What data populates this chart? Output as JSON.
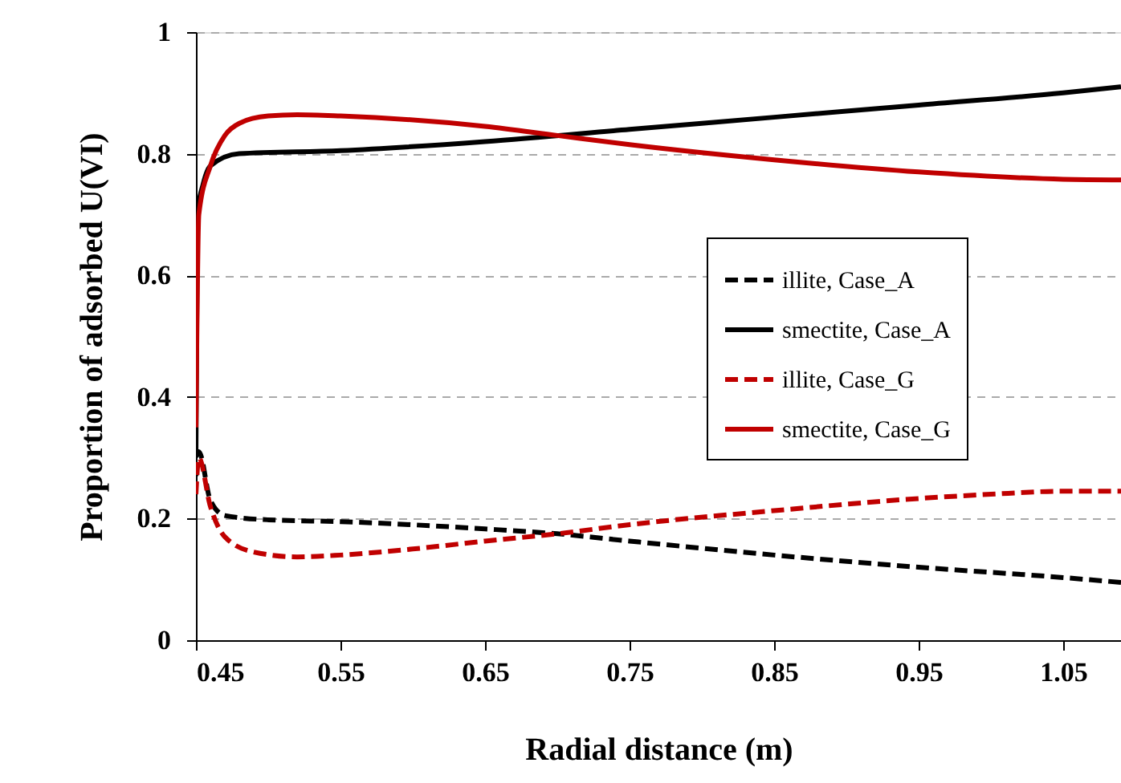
{
  "chart_data": {
    "type": "line",
    "xlabel": "Radial distance (m)",
    "ylabel": "Proportion of adsorbed U(VI)",
    "xlim": [
      0.45,
      1.09
    ],
    "xticks": [
      0.45,
      0.55,
      0.65,
      0.75,
      0.85,
      0.95,
      1.05
    ],
    "ylim": [
      0,
      1
    ],
    "yticks": [
      {
        "value": 0,
        "label": "0"
      },
      0.2,
      0.4,
      0.6,
      0.8,
      {
        "value": 1,
        "label": "1"
      }
    ],
    "grid": "y",
    "legend": "right",
    "marker": "none",
    "series": [
      {
        "name": "illite, Case_A",
        "color": "#000000",
        "line_style": "dashed",
        "x": [
          0.45,
          0.452,
          0.46,
          0.47,
          0.5,
          0.55,
          0.65,
          0.7,
          0.75,
          0.85,
          0.95,
          1.05,
          1.09
        ],
        "values": [
          0.27,
          0.31,
          0.23,
          0.205,
          0.198,
          0.195,
          0.183,
          0.175,
          0.163,
          0.14,
          0.12,
          0.103,
          0.095
        ]
      },
      {
        "name": "smectite, Case_A",
        "color": "#000000",
        "line_style": "solid",
        "x": [
          0.45,
          0.451,
          0.455,
          0.46,
          0.48,
          0.55,
          0.65,
          0.75,
          0.85,
          0.95,
          1.05,
          1.09
        ],
        "values": [
          0.3,
          0.7,
          0.75,
          0.78,
          0.8,
          0.805,
          0.82,
          0.84,
          0.86,
          0.88,
          0.9,
          0.91
        ]
      },
      {
        "name": "illite, Case_G",
        "color": "#c00000",
        "line_style": "dashed",
        "x": [
          0.45,
          0.452,
          0.46,
          0.47,
          0.49,
          0.52,
          0.55,
          0.6,
          0.65,
          0.7,
          0.75,
          0.85,
          0.95,
          1.0,
          1.05,
          1.09
        ],
        "values": [
          0.24,
          0.3,
          0.22,
          0.17,
          0.145,
          0.137,
          0.14,
          0.15,
          0.163,
          0.175,
          0.19,
          0.213,
          0.233,
          0.24,
          0.245,
          0.245
        ]
      },
      {
        "name": "smectite, Case_G",
        "color": "#c00000",
        "line_style": "solid",
        "x": [
          0.45,
          0.452,
          0.46,
          0.47,
          0.48,
          0.5,
          0.52,
          0.55,
          0.65,
          0.7,
          0.75,
          0.85,
          0.95,
          1.05,
          1.09
        ],
        "values": [
          0.35,
          0.7,
          0.78,
          0.83,
          0.85,
          0.862,
          0.864,
          0.862,
          0.845,
          0.83,
          0.815,
          0.79,
          0.77,
          0.758,
          0.757
        ]
      }
    ]
  }
}
